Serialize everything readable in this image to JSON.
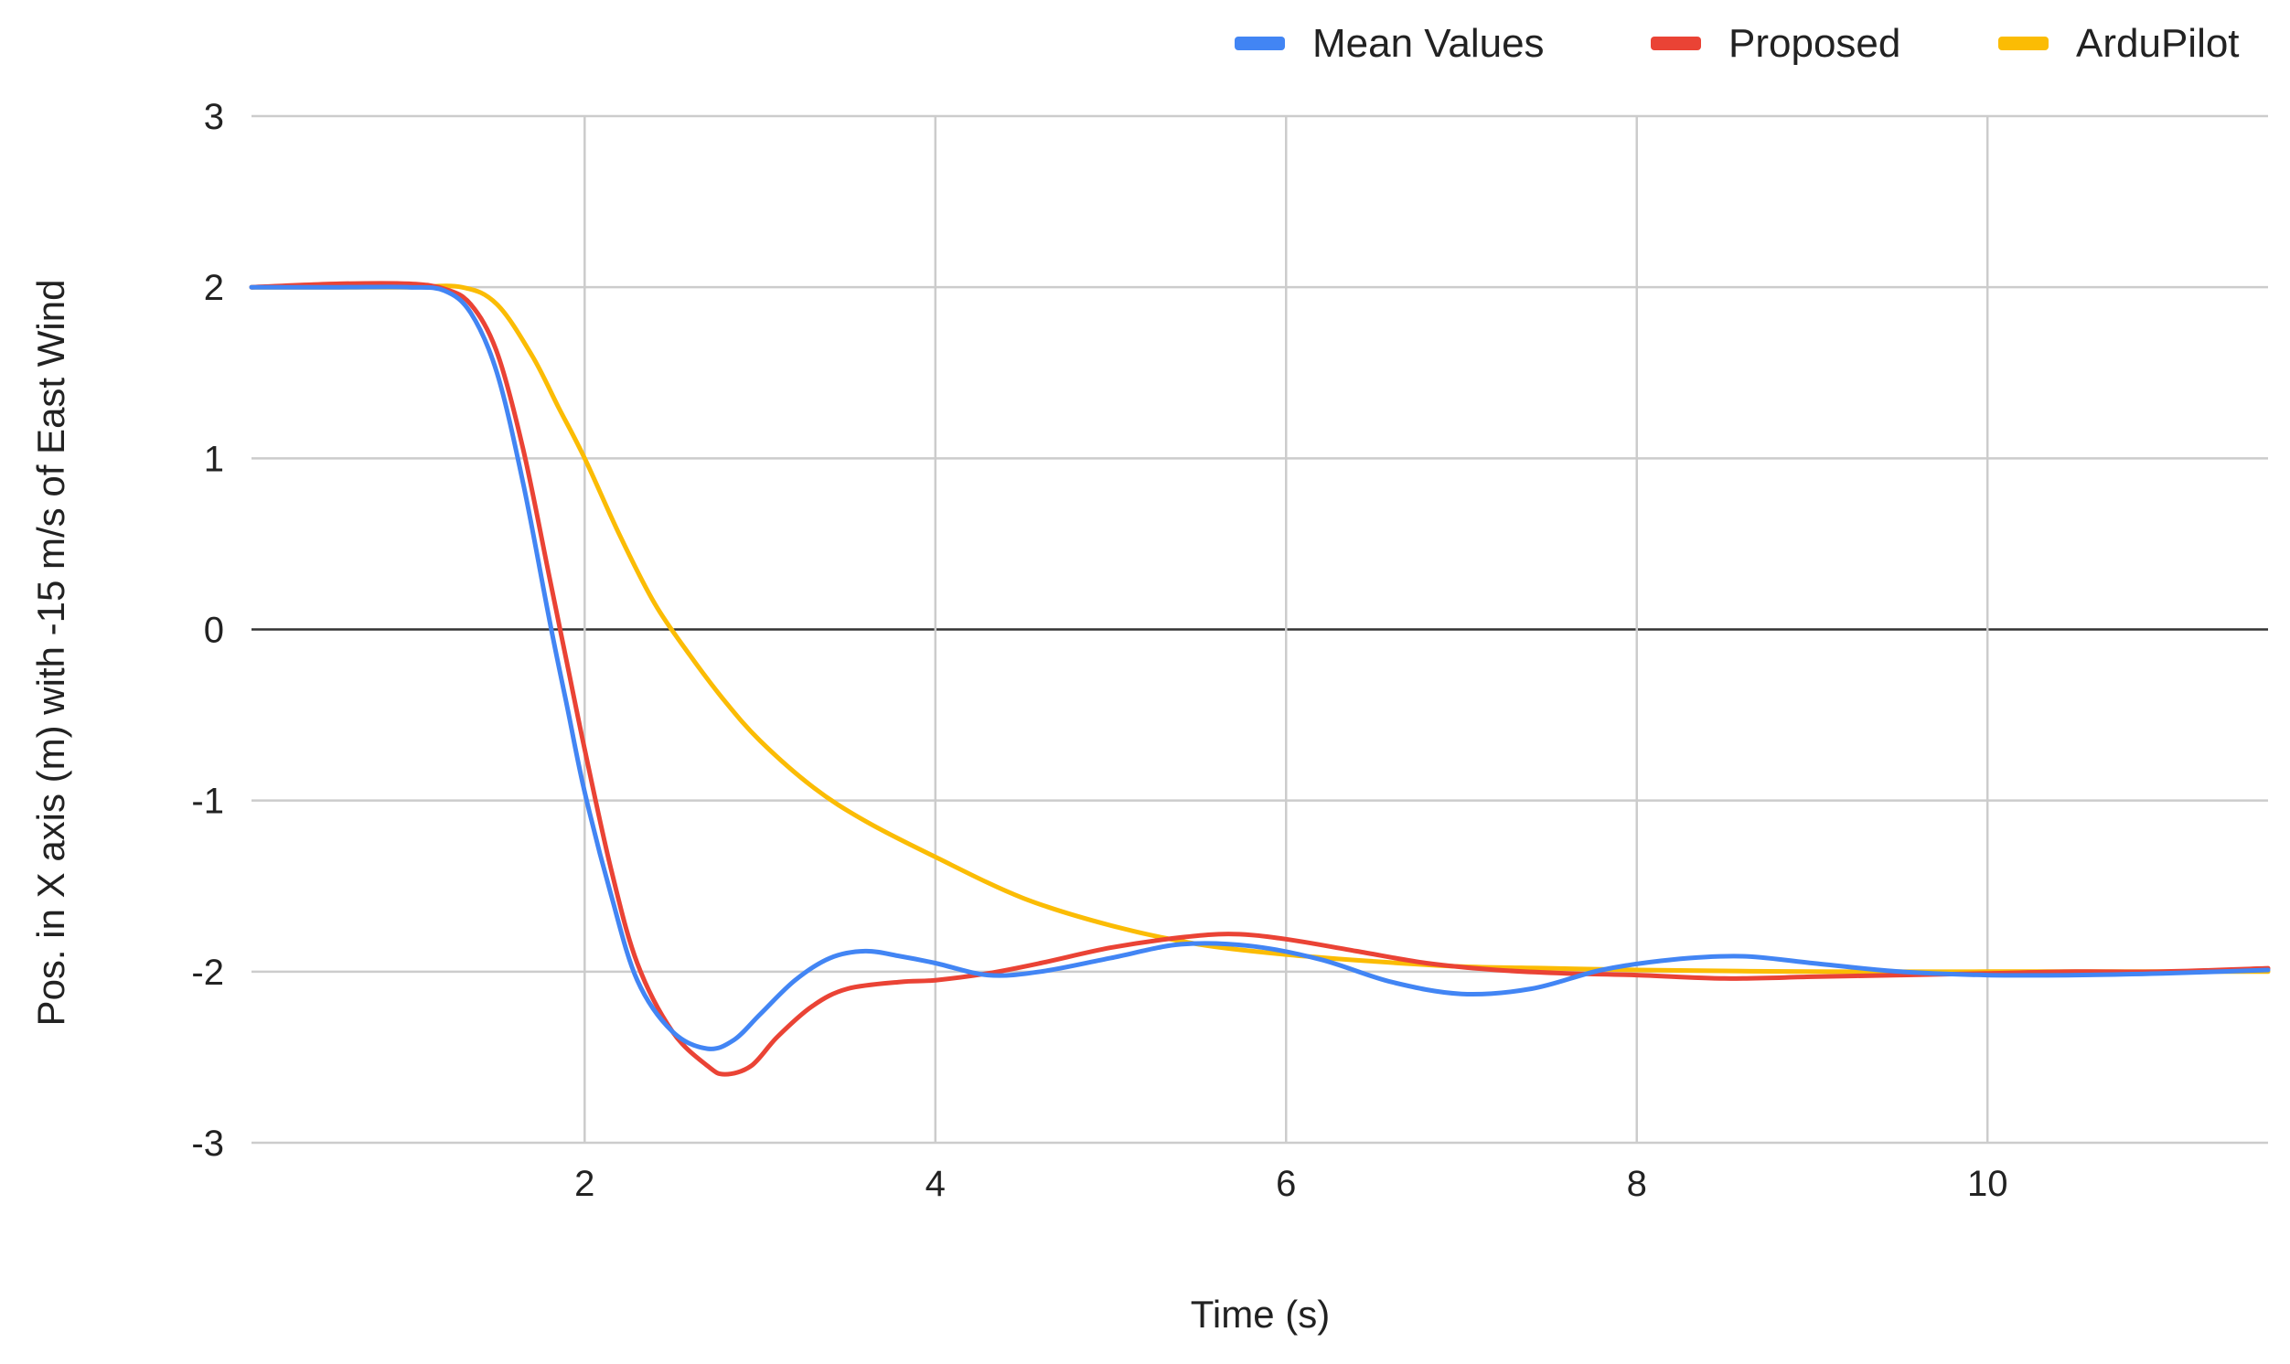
{
  "chart_data": {
    "type": "line",
    "title": "",
    "xlabel": "Time (s)",
    "ylabel": "Pos. in X axis (m) with -15 m/s of East Wind",
    "xlim": [
      0.1,
      11.6
    ],
    "ylim": [
      -3,
      3
    ],
    "xticks": [
      2,
      4,
      6,
      8,
      10
    ],
    "xtick_labels": [
      "2",
      "4",
      "6",
      "8",
      "10"
    ],
    "yticks": [
      3,
      2,
      1,
      0,
      -1,
      -2,
      -3
    ],
    "ytick_labels": [
      "3",
      "2",
      "1",
      "0",
      "-1",
      "-2",
      "-3"
    ],
    "grid": true,
    "legend_position": "top-right",
    "series": [
      {
        "name": "Mean Values",
        "color": "#4285f4",
        "x": [
          0.1,
          0.6,
          1.0,
          1.2,
          1.35,
          1.5,
          1.65,
          1.8,
          1.9,
          2.0,
          2.15,
          2.3,
          2.5,
          2.7,
          2.85,
          3.0,
          3.2,
          3.4,
          3.6,
          3.8,
          4.0,
          4.3,
          4.6,
          5.0,
          5.4,
          5.8,
          6.2,
          6.6,
          7.0,
          7.4,
          7.8,
          8.2,
          8.6,
          9.0,
          9.5,
          10.0,
          10.5,
          11.0,
          11.6
        ],
        "values": [
          2.0,
          2.0,
          2.0,
          1.98,
          1.85,
          1.5,
          0.85,
          0.05,
          -0.45,
          -0.95,
          -1.55,
          -2.05,
          -2.35,
          -2.45,
          -2.4,
          -2.25,
          -2.05,
          -1.92,
          -1.88,
          -1.91,
          -1.95,
          -2.02,
          -2.0,
          -1.92,
          -1.84,
          -1.85,
          -1.93,
          -2.06,
          -2.13,
          -2.1,
          -1.99,
          -1.93,
          -1.91,
          -1.95,
          -2.0,
          -2.02,
          -2.02,
          -2.01,
          -1.99
        ]
      },
      {
        "name": "Proposed",
        "color": "#ea4335",
        "x": [
          0.1,
          0.6,
          1.0,
          1.2,
          1.35,
          1.5,
          1.65,
          1.8,
          1.9,
          2.0,
          2.15,
          2.3,
          2.5,
          2.7,
          2.8,
          2.95,
          3.1,
          3.3,
          3.5,
          3.8,
          4.0,
          4.3,
          4.6,
          5.0,
          5.4,
          5.7,
          6.0,
          6.4,
          6.8,
          7.2,
          7.6,
          8.0,
          8.5,
          9.0,
          9.5,
          10.0,
          10.5,
          11.0,
          11.6
        ],
        "values": [
          2.0,
          2.02,
          2.02,
          1.99,
          1.9,
          1.62,
          1.05,
          0.3,
          -0.2,
          -0.7,
          -1.4,
          -1.95,
          -2.35,
          -2.55,
          -2.6,
          -2.55,
          -2.38,
          -2.2,
          -2.1,
          -2.06,
          -2.05,
          -2.01,
          -1.95,
          -1.86,
          -1.8,
          -1.78,
          -1.81,
          -1.88,
          -1.95,
          -1.99,
          -2.01,
          -2.02,
          -2.04,
          -2.03,
          -2.02,
          -2.01,
          -2.0,
          -2.0,
          -1.98
        ]
      },
      {
        "name": "ArduPilot",
        "color": "#fbbc04",
        "x": [
          0.1,
          0.6,
          1.0,
          1.3,
          1.5,
          1.7,
          1.85,
          2.0,
          2.2,
          2.4,
          2.6,
          2.8,
          3.0,
          3.3,
          3.6,
          4.0,
          4.5,
          5.0,
          5.5,
          6.0,
          6.5,
          7.0,
          7.5,
          8.0,
          9.0,
          10.0,
          11.0,
          11.6
        ],
        "values": [
          2.0,
          2.0,
          2.0,
          2.0,
          1.9,
          1.6,
          1.3,
          1.0,
          0.55,
          0.15,
          -0.15,
          -0.42,
          -0.65,
          -0.92,
          -1.12,
          -1.33,
          -1.57,
          -1.73,
          -1.84,
          -1.9,
          -1.94,
          -1.97,
          -1.98,
          -1.99,
          -2.0,
          -2.0,
          -2.0,
          -2.0
        ]
      }
    ]
  }
}
